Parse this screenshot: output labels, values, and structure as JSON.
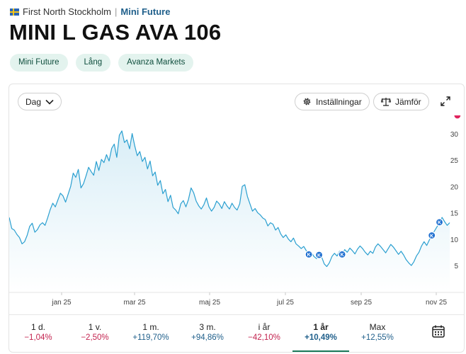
{
  "breadcrumb": {
    "market": "First North Stockholm",
    "separator": "|",
    "category": "Mini Future"
  },
  "title": "MINI L GAS AVA 106",
  "tags": [
    "Mini Future",
    "Lång",
    "Avanza Markets"
  ],
  "toolbar": {
    "period_select": "Dag",
    "settings_label": "Inställningar",
    "compare_label": "Jämför"
  },
  "chart_data": {
    "type": "area",
    "x_tick_labels": [
      "jan 25",
      "mar 25",
      "maj 25",
      "jul 25",
      "sep 25",
      "nov 25"
    ],
    "y_ticks": [
      5,
      10,
      15,
      20,
      25,
      30
    ],
    "ylim": [
      0,
      33
    ],
    "grid": false,
    "line_color": "#2a9fd0",
    "series": [
      {
        "values": [
          14.2,
          12.1,
          11.8,
          11,
          10.4,
          9.2,
          9.6,
          10.8,
          12.5,
          13.1,
          11.4,
          11.9,
          12.8,
          13.2,
          12.7,
          14.1,
          15.7,
          16.9,
          16.2,
          17.5,
          18.8,
          18.3,
          17.1,
          18.6,
          20.1,
          22.6,
          21.8,
          23.3,
          19.8,
          20.6,
          22.1,
          23.7,
          22.9,
          22.2,
          24.8,
          23.1,
          25.2,
          24.6,
          26.1,
          24.9,
          27.3,
          28.1,
          25.6,
          29.8,
          30.6,
          28.4,
          28.9,
          27.2,
          30.1,
          27.8,
          25.9,
          26.7,
          24.8,
          25.6,
          23.4,
          24.9,
          22.1,
          22.8,
          20.3,
          21.2,
          18.7,
          19.5,
          17.2,
          18.4,
          16.1,
          15.6,
          14.9,
          16.8,
          17.4,
          16.2,
          17.6,
          19.8,
          18.9,
          17.3,
          16.4,
          15.8,
          16.6,
          17.9,
          16.2,
          15.4,
          16.1,
          17.3,
          16.8,
          15.9,
          17.2,
          16.4,
          15.8,
          16.9,
          16.1,
          15.6,
          16.8,
          20.1,
          20.4,
          18.2,
          16.8,
          15.4,
          15.9,
          15.1,
          14.7,
          14.1,
          13.8,
          12.6,
          13.2,
          12.9,
          11.8,
          12.3,
          11.1,
          10.4,
          10.9,
          10.1,
          9.6,
          10.3,
          9.2,
          8.8,
          8.3,
          8.7,
          7.9,
          7.2,
          7.6,
          6.8,
          6.4,
          7.1,
          6.7,
          5.4,
          4.9,
          5.6,
          6.8,
          7.4,
          6.9,
          7.8,
          7.2,
          8.1,
          7.6,
          8.4,
          7.9,
          7.3,
          8.2,
          8.8,
          8.3,
          7.6,
          7.1,
          7.8,
          7.4,
          8.6,
          9.2,
          8.7,
          8.1,
          7.5,
          8.3,
          9.1,
          8.6,
          7.9,
          7.2,
          7.8,
          7.1,
          6.2,
          5.6,
          5.1,
          5.8,
          6.9,
          7.6,
          8.8,
          9.6,
          8.9,
          9.9,
          10.8,
          11.6,
          12.4,
          13.3,
          14.2,
          13.4,
          12.7,
          13.2
        ]
      }
    ],
    "markers": [
      {
        "label": "K",
        "index": 117
      },
      {
        "label": "K",
        "index": 121
      },
      {
        "label": "K",
        "index": 130
      },
      {
        "label": "K",
        "index": 165
      },
      {
        "label": "K",
        "index": 168
      },
      {
        "label": "S",
        "index": 175
      }
    ]
  },
  "periods": [
    {
      "label": "1 d.",
      "value": "−1,04%",
      "trend": "neg"
    },
    {
      "label": "1 v.",
      "value": "−2,50%",
      "trend": "neg"
    },
    {
      "label": "1 m.",
      "value": "+119,70%",
      "trend": "pos"
    },
    {
      "label": "3 m.",
      "value": "+94,86%",
      "trend": "pos"
    },
    {
      "label": "i år",
      "value": "−42,10%",
      "trend": "neg"
    },
    {
      "label": "1 år",
      "value": "+10,49%",
      "trend": "pos",
      "active": true
    },
    {
      "label": "Max",
      "value": "+12,55%",
      "trend": "pos"
    }
  ],
  "colors": {
    "accent": "#1b7a5a",
    "negative": "#c3234f",
    "positive": "#1f5f8b",
    "marker_buy": "#1f6fd0",
    "marker_sell": "#e0245e"
  },
  "icons": {
    "settings": "gear-icon",
    "compare": "scale-icon",
    "expand": "expand-icon",
    "calendar": "calendar-icon",
    "dropdown": "chevron-down-icon"
  }
}
